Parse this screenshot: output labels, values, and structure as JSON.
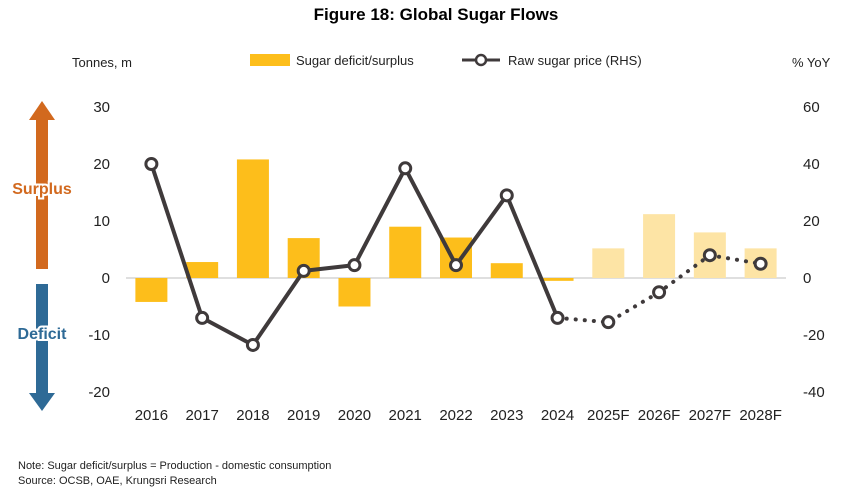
{
  "chart_data": {
    "type": "bar+line",
    "title": "Figure 18: Global Sugar Flows",
    "left_unit": "Tonnes, m",
    "right_unit": "% YoY",
    "categories": [
      "2016",
      "2017",
      "2018",
      "2019",
      "2020",
      "2021",
      "2022",
      "2023",
      "2024",
      "2025F",
      "2026F",
      "2027F",
      "2028F"
    ],
    "forecast_from_index": 9,
    "left_axis": {
      "min": -20,
      "max": 30,
      "ticks": [
        30,
        20,
        10,
        0,
        -10,
        -20
      ],
      "tick_labels": [
        "30",
        "20",
        "10",
        "0",
        "-10",
        "-20"
      ]
    },
    "right_axis": {
      "min": -40,
      "max": 60,
      "ticks": [
        60,
        40,
        20,
        0,
        -20,
        -40
      ],
      "tick_labels": [
        "60",
        "40",
        "20",
        "0",
        "-20",
        "-40"
      ]
    },
    "series": [
      {
        "name": "Sugar deficit/surplus",
        "kind": "bar",
        "axis": "left",
        "values": [
          -4.2,
          2.8,
          20.8,
          7.0,
          -5.0,
          9.0,
          7.1,
          2.6,
          -0.5,
          5.2,
          11.2,
          8.0,
          5.2
        ]
      },
      {
        "name": "Raw sugar price (RHS)",
        "kind": "line",
        "axis": "right",
        "values": [
          40,
          -14,
          -23.5,
          2.5,
          4.5,
          38.5,
          4.5,
          29,
          -14,
          -15.5,
          -5,
          8,
          5
        ]
      }
    ],
    "side_labels": {
      "up": "Surplus",
      "down": "Deficit"
    },
    "colors": {
      "bar": "#FDBE1B",
      "bar_forecast": "#FDE4A5",
      "line": "#3F3A3B",
      "marker_fill": "#FFFFFF",
      "arrow_up": "#D2691E",
      "arrow_down": "#2E6A96",
      "zero_line": "#BFBFBF"
    },
    "notes": [
      "Note: Sugar deficit/surplus = Production - domestic consumption",
      "Source: OCSB, OAE, Krungsri Research"
    ]
  }
}
